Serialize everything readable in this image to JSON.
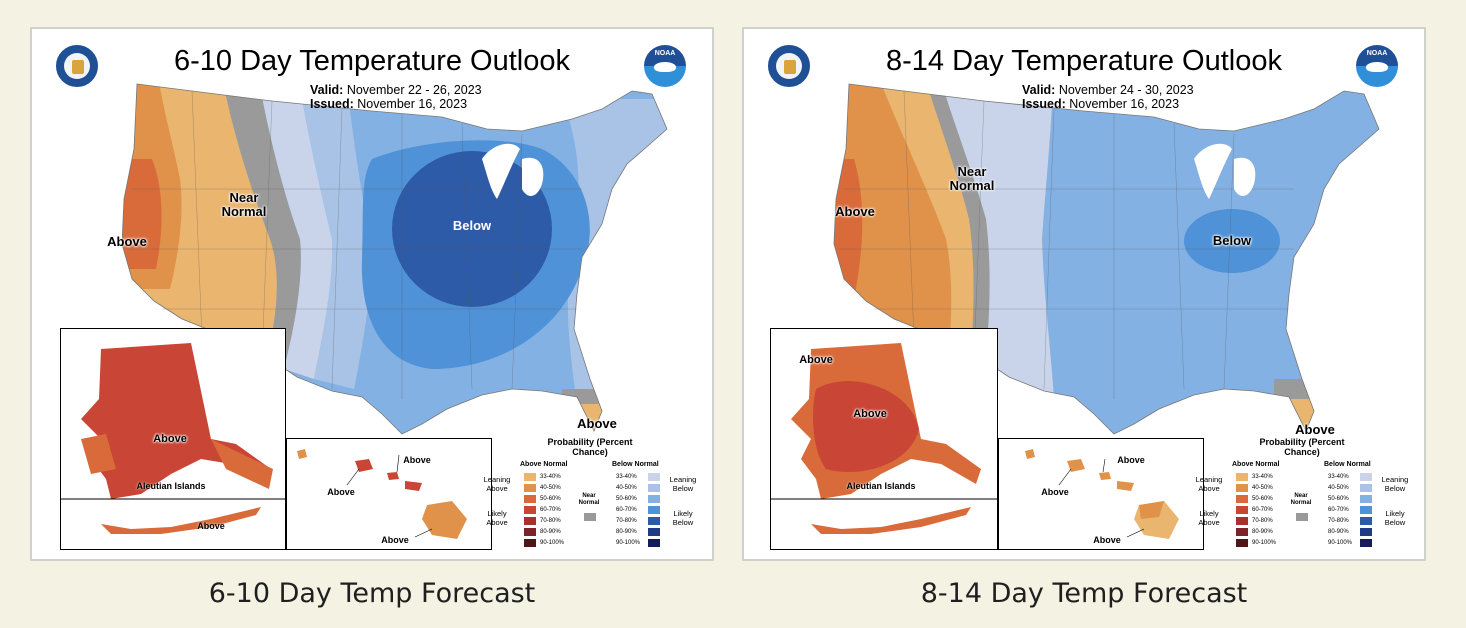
{
  "maps": [
    {
      "title": "6-10 Day Temperature Outlook",
      "valid_label": "Valid:",
      "valid_value": "November 22 - 26, 2023",
      "issued_label": "Issued:",
      "issued_value": "November 16, 2023",
      "caption": "6-10 Day Temp Forecast",
      "labels": {
        "near_normal": "Near Normal",
        "above_west": "Above",
        "below_main": "Below",
        "above_florida": "Above",
        "above_alaska": "Above",
        "aleutian_title": "Aleutian Islands",
        "above_aleutian": "Above",
        "above_hawaii_1": "Above",
        "above_hawaii_2": "Above",
        "above_hawaii_3": "Above"
      }
    },
    {
      "title": "8-14 Day Temperature Outlook",
      "valid_label": "Valid:",
      "valid_value": "November 24 - 30, 2023",
      "issued_label": "Issued:",
      "issued_value": "November 16, 2023",
      "caption": "8-14 Day Temp Forecast",
      "labels": {
        "near_normal": "Near Normal",
        "above_west": "Above",
        "below_main": "Below",
        "above_florida": "Above",
        "above_alaska_1": "Above",
        "above_alaska_2": "Above",
        "aleutian_title": "Aleutian Islands",
        "above_hawaii_1": "Above",
        "above_hawaii_2": "Above",
        "above_hawaii_3": "Above"
      }
    }
  ],
  "legend": {
    "title": "Probability (Percent Chance)",
    "above_header": "Above Normal",
    "below_header": "Below Normal",
    "near_label": "Near Normal",
    "leaning_above": "Leaning Above",
    "likely_above": "Likely Above",
    "leaning_below": "Leaning Below",
    "likely_below": "Likely Below",
    "ranges": [
      "33-40%",
      "40-50%",
      "50-60%",
      "60-70%",
      "70-80%",
      "80-90%",
      "90-100%"
    ],
    "above_colors": [
      "#e9b56f",
      "#e0924a",
      "#d96b3b",
      "#c94535",
      "#a8302d",
      "#7d2327",
      "#4d1515"
    ],
    "below_colors": [
      "#c9d4ea",
      "#a9c3e6",
      "#84b1e3",
      "#4f92d8",
      "#2d5ba7",
      "#1f3c86",
      "#141d57"
    ],
    "near_color": "#9a9a9a"
  },
  "logos": {
    "noaa": "NOAA"
  }
}
